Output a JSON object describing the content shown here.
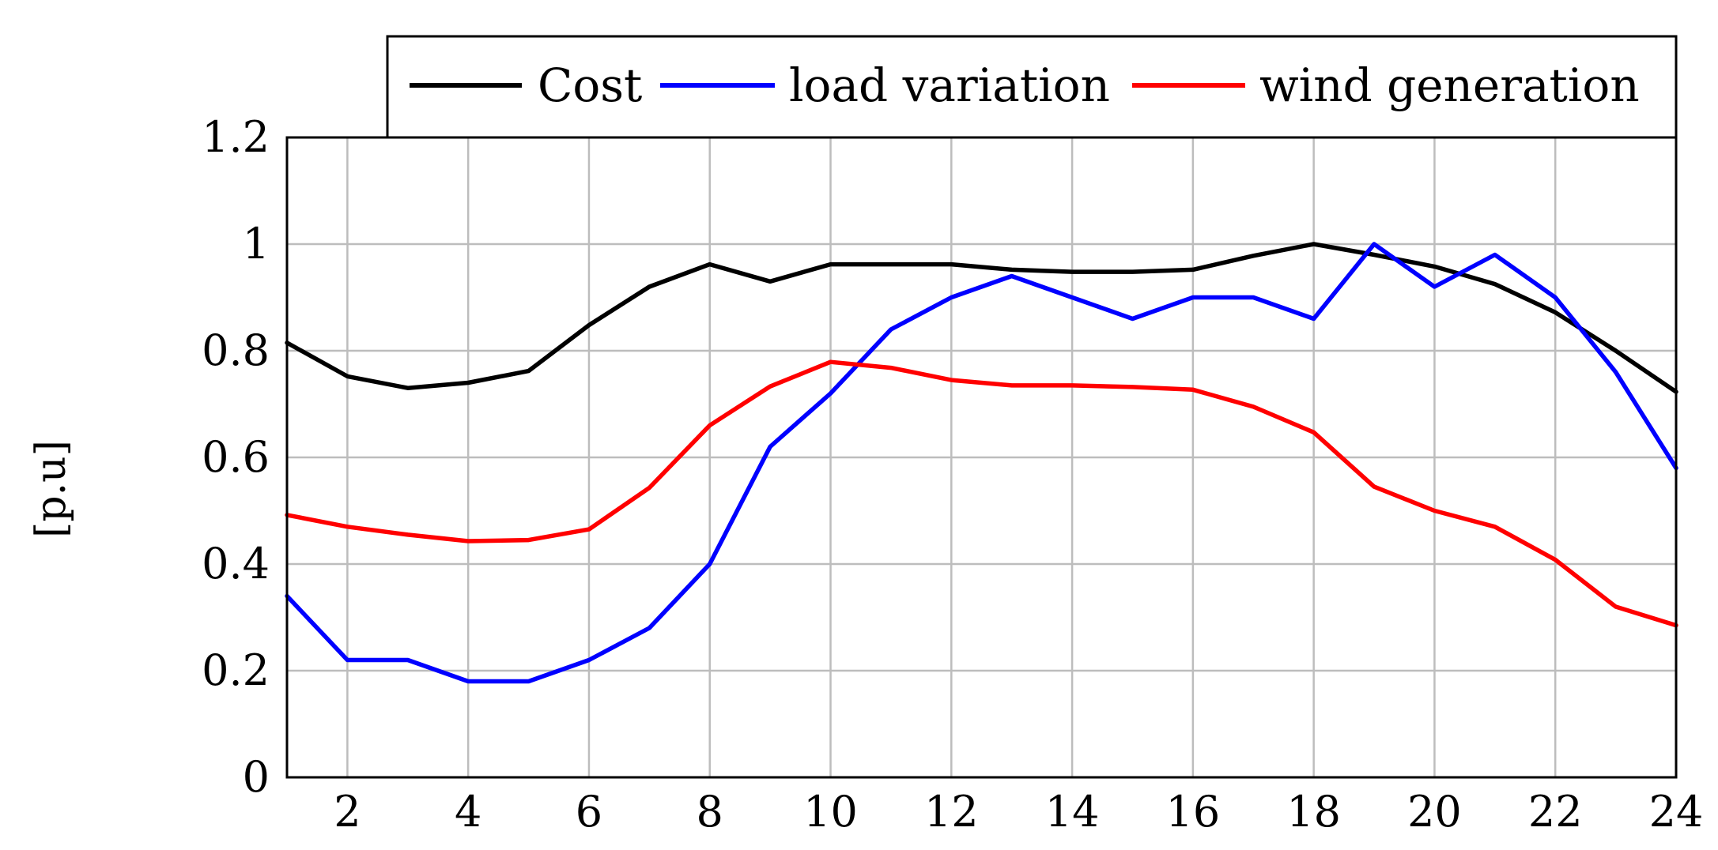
{
  "chart_data": {
    "type": "line",
    "title": "",
    "xlabel": "",
    "ylabel": "[p.u]",
    "xlim": [
      1,
      24
    ],
    "ylim": [
      0,
      1.2
    ],
    "grid": true,
    "legend_position": "top",
    "x": [
      1,
      2,
      3,
      4,
      5,
      6,
      7,
      8,
      9,
      10,
      11,
      12,
      13,
      14,
      15,
      16,
      17,
      18,
      19,
      20,
      21,
      22,
      23,
      24
    ],
    "x_ticks": [
      2,
      4,
      6,
      8,
      10,
      12,
      14,
      16,
      18,
      20,
      22,
      24
    ],
    "x_tick_labels": [
      "2",
      "4",
      "6",
      "8",
      "10",
      "12",
      "14",
      "16",
      "18",
      "20",
      "22",
      "24"
    ],
    "y_ticks": [
      0,
      0.2,
      0.4,
      0.6,
      0.8,
      1,
      1.2
    ],
    "y_tick_labels": [
      "0",
      "0.2",
      "0.4",
      "0.6",
      "0.8",
      "1",
      "1.2"
    ],
    "series": [
      {
        "name": "Cost",
        "color": "#000000",
        "values": [
          0.815,
          0.752,
          0.73,
          0.74,
          0.762,
          0.848,
          0.92,
          0.962,
          0.93,
          0.962,
          0.962,
          0.962,
          0.952,
          0.948,
          0.948,
          0.952,
          0.978,
          1.0,
          0.98,
          0.958,
          0.925,
          0.872,
          0.8,
          0.723
        ]
      },
      {
        "name": "load variation",
        "color": "#0000ff",
        "values": [
          0.34,
          0.22,
          0.22,
          0.18,
          0.18,
          0.22,
          0.28,
          0.4,
          0.62,
          0.72,
          0.84,
          0.9,
          0.94,
          0.9,
          0.86,
          0.9,
          0.9,
          0.86,
          1.0,
          0.92,
          0.98,
          0.9,
          0.76,
          0.58
        ]
      },
      {
        "name": "wind generation",
        "color": "#ff0000",
        "values": [
          0.492,
          0.47,
          0.455,
          0.443,
          0.445,
          0.465,
          0.543,
          0.66,
          0.733,
          0.779,
          0.768,
          0.745,
          0.735,
          0.735,
          0.732,
          0.727,
          0.695,
          0.647,
          0.545,
          0.5,
          0.47,
          0.408,
          0.32,
          0.285
        ]
      }
    ]
  }
}
